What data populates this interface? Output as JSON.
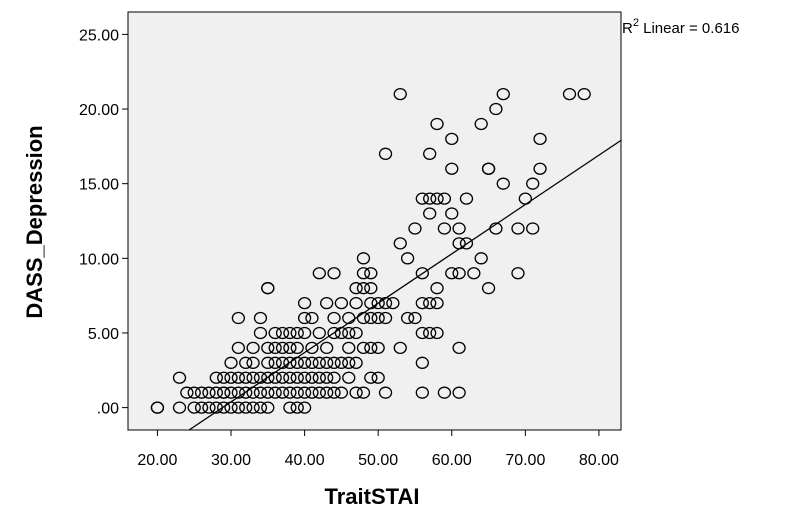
{
  "chart_data": {
    "type": "scatter",
    "xlabel": "TraitSTAI",
    "ylabel": "DASS_Depression",
    "xlim": [
      16,
      83
    ],
    "ylim": [
      -1.5,
      26.5
    ],
    "x_ticks": [
      "20.00",
      "30.00",
      "40.00",
      "50.00",
      "60.00",
      "70.00",
      "80.00"
    ],
    "x_tick_values": [
      20,
      30,
      40,
      50,
      60,
      70,
      80
    ],
    "y_ticks": [
      ".00",
      "5.00",
      "10.00",
      "15.00",
      "20.00",
      "25.00"
    ],
    "y_tick_values": [
      0,
      5,
      10,
      15,
      20,
      25
    ],
    "grid": false,
    "background_color": "#f0f0f0",
    "annotation": {
      "prefix": "R",
      "superscript": "2",
      "text": " Linear = 0.616"
    },
    "fit_line": {
      "x": [
        24.3,
        83
      ],
      "y": [
        -1.5,
        17.9
      ]
    },
    "points": [
      [
        20,
        0
      ],
      [
        20,
        0
      ],
      [
        23,
        2
      ],
      [
        23,
        0
      ],
      [
        24,
        1
      ],
      [
        25,
        0
      ],
      [
        25,
        1
      ],
      [
        26,
        0
      ],
      [
        26,
        1
      ],
      [
        27,
        0
      ],
      [
        27,
        1
      ],
      [
        28,
        0
      ],
      [
        28,
        1
      ],
      [
        28,
        2
      ],
      [
        29,
        0
      ],
      [
        29,
        1
      ],
      [
        29,
        1
      ],
      [
        29,
        2
      ],
      [
        30,
        0
      ],
      [
        30,
        1
      ],
      [
        30,
        2
      ],
      [
        30,
        3
      ],
      [
        31,
        0
      ],
      [
        31,
        1
      ],
      [
        31,
        2
      ],
      [
        31,
        4
      ],
      [
        31,
        6
      ],
      [
        32,
        0
      ],
      [
        32,
        1
      ],
      [
        32,
        2
      ],
      [
        32,
        3
      ],
      [
        33,
        0
      ],
      [
        33,
        1
      ],
      [
        33,
        2
      ],
      [
        33,
        3
      ],
      [
        33,
        4
      ],
      [
        34,
        0
      ],
      [
        34,
        1
      ],
      [
        34,
        2
      ],
      [
        34,
        5
      ],
      [
        34,
        6
      ],
      [
        35,
        0
      ],
      [
        35,
        1
      ],
      [
        35,
        2
      ],
      [
        35,
        3
      ],
      [
        35,
        4
      ],
      [
        35,
        8
      ],
      [
        35,
        8
      ],
      [
        36,
        1
      ],
      [
        36,
        2
      ],
      [
        36,
        3
      ],
      [
        36,
        4
      ],
      [
        36,
        5
      ],
      [
        37,
        1
      ],
      [
        37,
        2
      ],
      [
        37,
        3
      ],
      [
        37,
        4
      ],
      [
        37,
        5
      ],
      [
        38,
        0
      ],
      [
        38,
        1
      ],
      [
        38,
        2
      ],
      [
        38,
        3
      ],
      [
        38,
        4
      ],
      [
        38,
        5
      ],
      [
        39,
        0
      ],
      [
        39,
        1
      ],
      [
        39,
        2
      ],
      [
        39,
        3
      ],
      [
        39,
        4
      ],
      [
        39,
        5
      ],
      [
        40,
        0
      ],
      [
        40,
        1
      ],
      [
        40,
        2
      ],
      [
        40,
        3
      ],
      [
        40,
        5
      ],
      [
        40,
        6
      ],
      [
        40,
        7
      ],
      [
        41,
        1
      ],
      [
        41,
        2
      ],
      [
        41,
        3
      ],
      [
        41,
        4
      ],
      [
        41,
        6
      ],
      [
        42,
        1
      ],
      [
        42,
        2
      ],
      [
        42,
        3
      ],
      [
        42,
        5
      ],
      [
        42,
        9
      ],
      [
        43,
        1
      ],
      [
        43,
        2
      ],
      [
        43,
        3
      ],
      [
        43,
        4
      ],
      [
        43,
        7
      ],
      [
        44,
        1
      ],
      [
        44,
        2
      ],
      [
        44,
        3
      ],
      [
        44,
        5
      ],
      [
        44,
        6
      ],
      [
        44,
        9
      ],
      [
        45,
        1
      ],
      [
        45,
        3
      ],
      [
        45,
        5
      ],
      [
        45,
        7
      ],
      [
        46,
        2
      ],
      [
        46,
        3
      ],
      [
        46,
        4
      ],
      [
        46,
        5
      ],
      [
        46,
        6
      ],
      [
        47,
        1
      ],
      [
        47,
        3
      ],
      [
        47,
        5
      ],
      [
        47,
        7
      ],
      [
        47,
        8
      ],
      [
        48,
        1
      ],
      [
        48,
        4
      ],
      [
        48,
        6
      ],
      [
        48,
        8
      ],
      [
        48,
        9
      ],
      [
        48,
        10
      ],
      [
        49,
        2
      ],
      [
        49,
        4
      ],
      [
        49,
        6
      ],
      [
        49,
        7
      ],
      [
        49,
        8
      ],
      [
        49,
        9
      ],
      [
        50,
        2
      ],
      [
        50,
        4
      ],
      [
        50,
        6
      ],
      [
        50,
        7
      ],
      [
        51,
        1
      ],
      [
        51,
        6
      ],
      [
        51,
        7
      ],
      [
        51,
        17
      ],
      [
        52,
        7
      ],
      [
        53,
        4
      ],
      [
        53,
        11
      ],
      [
        53,
        21
      ],
      [
        54,
        6
      ],
      [
        54,
        10
      ],
      [
        55,
        6
      ],
      [
        55,
        12
      ],
      [
        56,
        1
      ],
      [
        56,
        3
      ],
      [
        56,
        5
      ],
      [
        56,
        7
      ],
      [
        56,
        9
      ],
      [
        56,
        14
      ],
      [
        57,
        5
      ],
      [
        57,
        7
      ],
      [
        57,
        13
      ],
      [
        57,
        14
      ],
      [
        57,
        17
      ],
      [
        58,
        5
      ],
      [
        58,
        7
      ],
      [
        58,
        8
      ],
      [
        58,
        14
      ],
      [
        58,
        19
      ],
      [
        59,
        1
      ],
      [
        59,
        12
      ],
      [
        59,
        14
      ],
      [
        60,
        9
      ],
      [
        60,
        13
      ],
      [
        60,
        16
      ],
      [
        60,
        18
      ],
      [
        61,
        1
      ],
      [
        61,
        4
      ],
      [
        61,
        9
      ],
      [
        61,
        11
      ],
      [
        61,
        12
      ],
      [
        62,
        11
      ],
      [
        62,
        14
      ],
      [
        63,
        9
      ],
      [
        64,
        10
      ],
      [
        64,
        19
      ],
      [
        65,
        8
      ],
      [
        65,
        16
      ],
      [
        65,
        16
      ],
      [
        66,
        12
      ],
      [
        66,
        20
      ],
      [
        67,
        15
      ],
      [
        67,
        21
      ],
      [
        69,
        9
      ],
      [
        69,
        12
      ],
      [
        70,
        14
      ],
      [
        71,
        12
      ],
      [
        71,
        15
      ],
      [
        72,
        16
      ],
      [
        72,
        18
      ],
      [
        76,
        21
      ],
      [
        78,
        21
      ]
    ]
  }
}
